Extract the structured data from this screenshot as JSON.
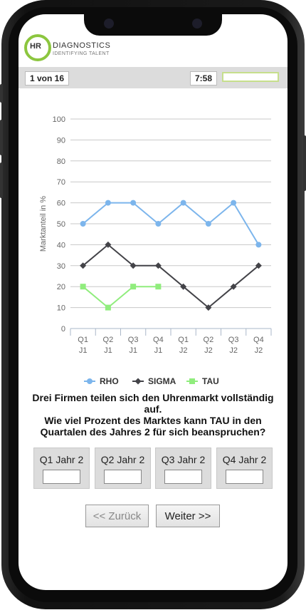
{
  "brand": {
    "logo_hr": "HR",
    "name": "DIAGNOSTICS",
    "tagline": "IDENTIFYING TALENT",
    "accent": "#8cc63f"
  },
  "status": {
    "counter": "1 von 16",
    "timer": "7:58",
    "progress": 0.0
  },
  "chart_data": {
    "type": "line",
    "ylabel": "Marktanteil in %",
    "ylim": [
      0,
      100
    ],
    "yticks": [
      0,
      10,
      20,
      30,
      40,
      50,
      60,
      70,
      80,
      90,
      100
    ],
    "grid": true,
    "legend_position": "bottom",
    "categories": [
      [
        "Q1",
        "J1"
      ],
      [
        "Q2",
        "J1"
      ],
      [
        "Q3",
        "J1"
      ],
      [
        "Q4",
        "J1"
      ],
      [
        "Q1",
        "J2"
      ],
      [
        "Q2",
        "J2"
      ],
      [
        "Q3",
        "J2"
      ],
      [
        "Q4",
        "J2"
      ]
    ],
    "series": [
      {
        "name": "RHO",
        "color": "#7cb5ec",
        "marker": "circle",
        "values": [
          50,
          60,
          60,
          50,
          60,
          50,
          60,
          40
        ]
      },
      {
        "name": "SIGMA",
        "color": "#434348",
        "marker": "diamond",
        "values": [
          30,
          40,
          30,
          30,
          20,
          10,
          20,
          30
        ]
      },
      {
        "name": "TAU",
        "color": "#90ed7d",
        "marker": "square",
        "values": [
          20,
          10,
          20,
          20,
          null,
          null,
          null,
          null
        ]
      }
    ]
  },
  "question": {
    "line1": "Drei Firmen teilen sich den Uhrenmarkt vollständig auf.",
    "line2": "Wie viel Prozent des Marktes kann TAU in den Quartalen des Jahres 2 für sich beanspruchen?"
  },
  "answers": [
    {
      "label": "Q1 Jahr 2",
      "value": ""
    },
    {
      "label": "Q2 Jahr 2",
      "value": ""
    },
    {
      "label": "Q3 Jahr 2",
      "value": ""
    },
    {
      "label": "Q4 Jahr 2",
      "value": ""
    }
  ],
  "nav": {
    "back_label": "<< Zurück",
    "next_label": "Weiter >>"
  }
}
